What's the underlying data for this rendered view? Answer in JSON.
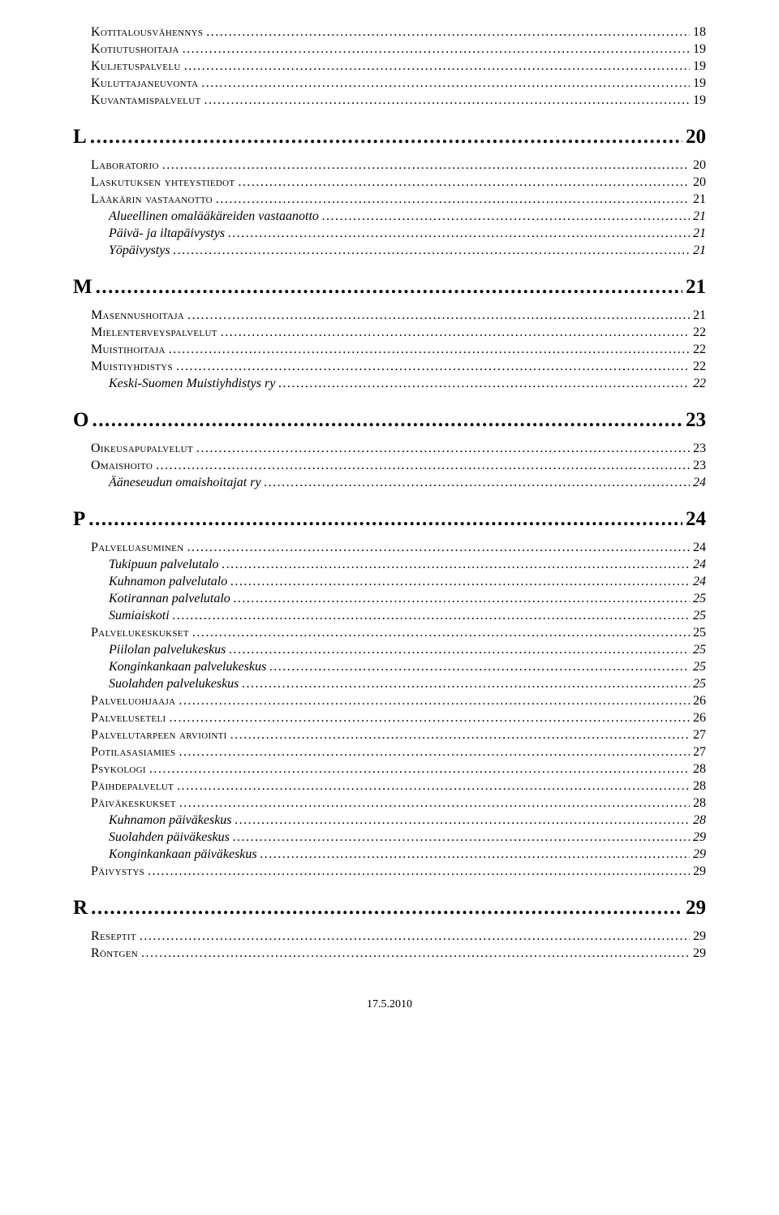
{
  "footer_date": "17.5.2010",
  "dot_fill": "........................................................................................................................................................................................................................................................................................................................",
  "entries": [
    {
      "level": "section",
      "label": "Kotitalousvähennys",
      "page": "18"
    },
    {
      "level": "section",
      "label": "Kotiutushoitaja",
      "page": "19"
    },
    {
      "level": "section",
      "label": "Kuljetuspalvelu",
      "page": "19"
    },
    {
      "level": "section",
      "label": "Kuluttajaneuvonta",
      "page": "19"
    },
    {
      "level": "section",
      "label": "Kuvantamispalvelut",
      "page": "19"
    },
    {
      "level": "top",
      "label": "L",
      "page": "20"
    },
    {
      "level": "section",
      "label": "Laboratorio",
      "page": "20"
    },
    {
      "level": "section",
      "label": "Laskutuksen yhteystiedot",
      "page": "20"
    },
    {
      "level": "section",
      "label": "Lääkärin vastaanotto",
      "page": "21"
    },
    {
      "level": "sub",
      "label": "Alueellinen omalääkäreiden vastaanotto",
      "page": "21"
    },
    {
      "level": "sub",
      "label": "Päivä- ja iltapäivystys",
      "page": "21"
    },
    {
      "level": "sub",
      "label": "Yöpäivystys",
      "page": "21"
    },
    {
      "level": "top",
      "label": "M",
      "page": "21"
    },
    {
      "level": "section",
      "label": "Masennushoitaja",
      "page": "21"
    },
    {
      "level": "section",
      "label": "Mielenterveyspalvelut",
      "page": "22"
    },
    {
      "level": "section",
      "label": "Muistihoitaja",
      "page": "22"
    },
    {
      "level": "section",
      "label": "Muistiyhdistys",
      "page": "22"
    },
    {
      "level": "sub",
      "label": "Keski-Suomen Muistiyhdistys ry",
      "page": "22"
    },
    {
      "level": "top",
      "label": "O",
      "page": "23"
    },
    {
      "level": "section",
      "label": "Oikeusapupalvelut",
      "page": "23"
    },
    {
      "level": "section",
      "label": "Omaishoito",
      "page": "23"
    },
    {
      "level": "sub",
      "label": "Ääneseudun omaishoitajat ry",
      "page": "24"
    },
    {
      "level": "top",
      "label": "P",
      "page": "24"
    },
    {
      "level": "section",
      "label": "Palveluasuminen",
      "page": "24"
    },
    {
      "level": "sub",
      "label": "Tukipuun palvelutalo",
      "page": "24"
    },
    {
      "level": "sub",
      "label": "Kuhnamon palvelutalo",
      "page": "24"
    },
    {
      "level": "sub",
      "label": "Kotirannan palvelutalo",
      "page": "25"
    },
    {
      "level": "sub",
      "label": "Sumiaiskoti",
      "page": "25"
    },
    {
      "level": "section",
      "label": "Palvelukeskukset",
      "page": "25"
    },
    {
      "level": "sub",
      "label": "Piilolan palvelukeskus",
      "page": "25"
    },
    {
      "level": "sub",
      "label": "Konginkankaan palvelukeskus",
      "page": "25"
    },
    {
      "level": "sub",
      "label": "Suolahden palvelukeskus",
      "page": "25"
    },
    {
      "level": "section",
      "label": "Palveluohjaaja",
      "page": "26"
    },
    {
      "level": "section",
      "label": "Palveluseteli",
      "page": "26"
    },
    {
      "level": "section",
      "label": "Palvelutarpeen arviointi",
      "page": "27"
    },
    {
      "level": "section",
      "label": "Potilasasiamies",
      "page": "27"
    },
    {
      "level": "section",
      "label": "Psykologi",
      "page": "28"
    },
    {
      "level": "section",
      "label": "Päihdepalvelut",
      "page": "28"
    },
    {
      "level": "section",
      "label": "Päiväkeskukset",
      "page": "28"
    },
    {
      "level": "sub",
      "label": "Kuhnamon päiväkeskus",
      "page": "28"
    },
    {
      "level": "sub",
      "label": "Suolahden päiväkeskus",
      "page": "29"
    },
    {
      "level": "sub",
      "label": "Konginkankaan päiväkeskus",
      "page": "29"
    },
    {
      "level": "section",
      "label": "Päivystys",
      "page": "29"
    },
    {
      "level": "top",
      "label": "R",
      "page": "29"
    },
    {
      "level": "section",
      "label": "Reseptit",
      "page": "29"
    },
    {
      "level": "section",
      "label": "Röntgen",
      "page": "29"
    }
  ]
}
